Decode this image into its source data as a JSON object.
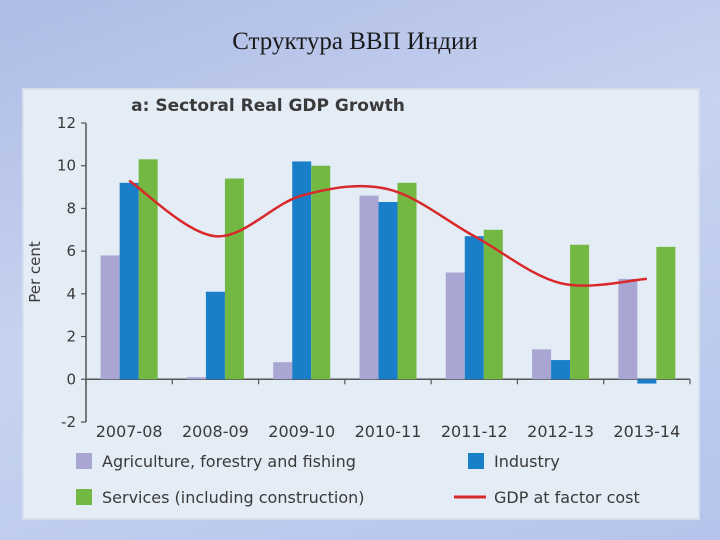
{
  "slide_title": "Структура ВВП Индии",
  "colors": {
    "agriculture": "#a9a6d4",
    "industry": "#1a7fc9",
    "services": "#72b843",
    "gdp": "#d8282a",
    "axis": "#555555"
  },
  "chart_data": {
    "type": "bar",
    "title": "a: Sectoral Real GDP Growth",
    "xlabel": "",
    "ylabel": "Per cent",
    "ylim": [
      -2,
      12
    ],
    "yticks": [
      -2,
      0,
      2,
      4,
      6,
      8,
      10,
      12
    ],
    "categories": [
      "2007-08",
      "2008-09",
      "2009-10",
      "2010-11",
      "2011-12",
      "2012-13",
      "2013-14"
    ],
    "series": [
      {
        "name": "Agriculture, forestry and fishing",
        "type": "bar",
        "color_key": "agriculture",
        "values": [
          5.8,
          0.1,
          0.8,
          8.6,
          5.0,
          1.4,
          4.7
        ]
      },
      {
        "name": "Industry",
        "type": "bar",
        "color_key": "industry",
        "values": [
          9.2,
          4.1,
          10.2,
          8.3,
          6.7,
          0.9,
          -0.2
        ]
      },
      {
        "name": "Services (including construction)",
        "type": "bar",
        "color_key": "services",
        "values": [
          10.3,
          9.4,
          10.0,
          9.2,
          7.0,
          6.3,
          6.2
        ]
      },
      {
        "name": "GDP at factor cost",
        "type": "line",
        "color_key": "gdp",
        "values": [
          9.3,
          6.7,
          8.6,
          8.9,
          6.7,
          4.5,
          4.7
        ]
      }
    ],
    "legend": [
      {
        "label": "Agriculture, forestry and fishing",
        "color_key": "agriculture",
        "kind": "box"
      },
      {
        "label": "Industry",
        "color_key": "industry",
        "kind": "box"
      },
      {
        "label": "Services (including construction)",
        "color_key": "services",
        "kind": "box"
      },
      {
        "label": "GDP at factor cost",
        "color_key": "gdp",
        "kind": "line"
      }
    ],
    "legend_position": "bottom",
    "grid": false
  }
}
